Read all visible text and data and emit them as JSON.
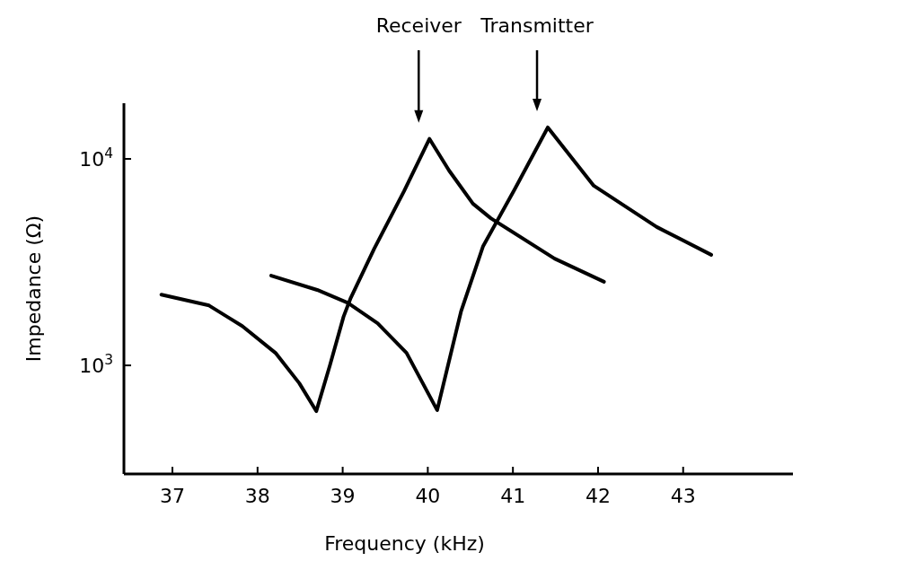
{
  "chart_data": {
    "type": "line",
    "xlabel": "Frequency (kHz)",
    "ylabel": "Impedance (Ω)",
    "log": "y",
    "xlim": [
      36.43,
      44.29
    ],
    "xticks": [
      37,
      38,
      39,
      40,
      41,
      42,
      43
    ],
    "ylim": [
      298,
      18600
    ],
    "yticks": [
      {
        "value": 1000,
        "label": "10$^{3}$"
      },
      {
        "value": 10000,
        "label": "10$^{4}$"
      }
    ],
    "grid": false,
    "marker": "none",
    "line_style": "solid",
    "series": [
      {
        "color": "#000000",
        "x": [
          36.87,
          37.43,
          37.82,
          38.21,
          38.49,
          38.69,
          38.85,
          39.01,
          39.09,
          39.37,
          39.72,
          40.02,
          40.25,
          40.53,
          40.74,
          41.49,
          42.07
        ],
        "values": [
          2200,
          1950,
          1550,
          1150,
          820,
          600,
          1000,
          1720,
          2100,
          3670,
          6970,
          12500,
          8780,
          6070,
          5160,
          3290,
          2540
        ]
      },
      {
        "color": "#000000",
        "x": [
          38.16,
          38.7,
          39.06,
          39.41,
          39.75,
          40.11,
          40.39,
          40.65,
          41.02,
          41.41,
          41.95,
          42.69,
          43.33
        ],
        "values": [
          2720,
          2320,
          2010,
          1600,
          1150,
          607,
          1820,
          3780,
          7110,
          14200,
          7410,
          4680,
          3430
        ]
      }
    ],
    "annotations": [
      "Receiver",
      "Transmitter"
    ]
  }
}
